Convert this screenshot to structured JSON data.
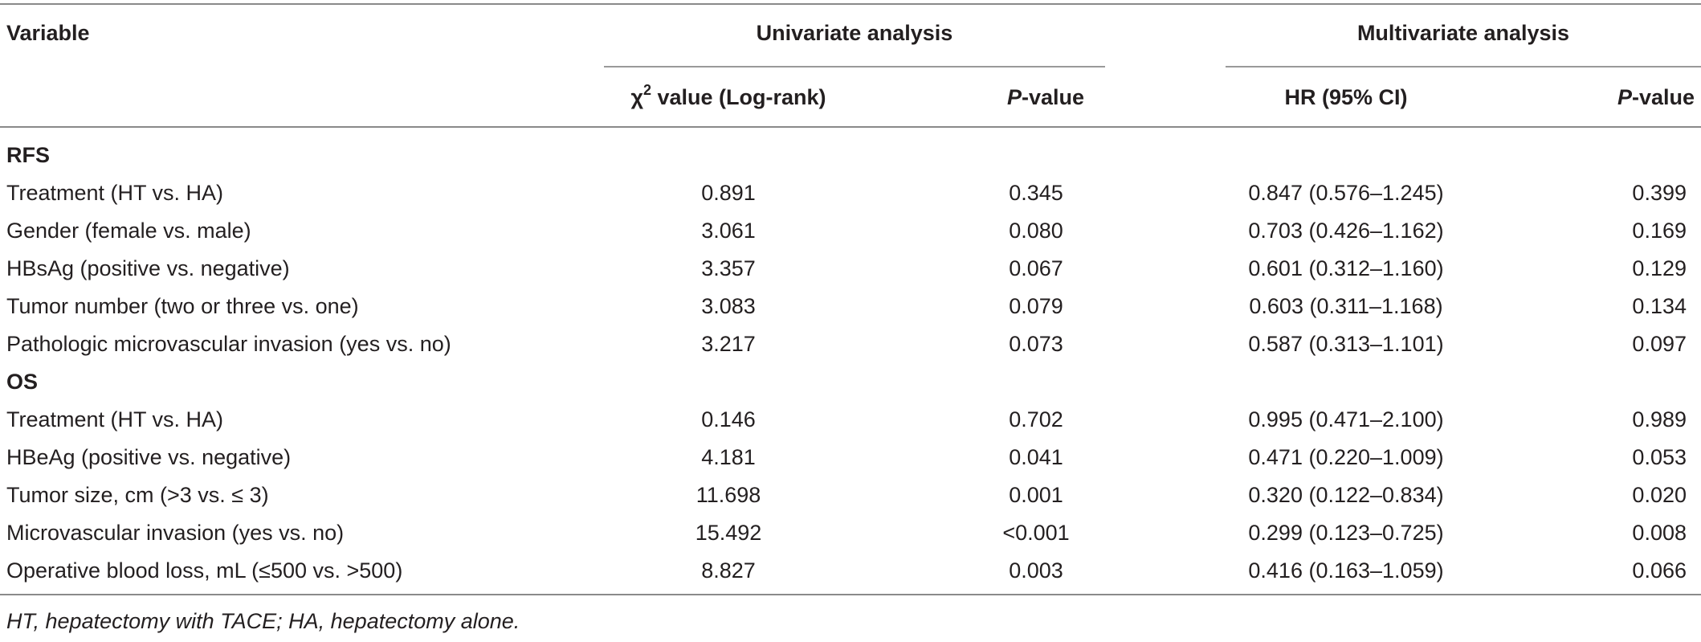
{
  "headers": {
    "variable": "Variable",
    "univariate": "Univariate analysis",
    "multivariate": "Multivariate analysis",
    "chi_prefix": "χ",
    "chi_sup": "2",
    "chi_suffix": " value (Log-rank)",
    "p_italic": "P",
    "p_suffix": "-value",
    "hr": "HR (95% CI)"
  },
  "sections": [
    {
      "title": "RFS",
      "rows": [
        {
          "variable": "Treatment (HT vs. HA)",
          "chi": "0.891",
          "p_uni": "0.345",
          "hr": "0.847 (0.576–1.245)",
          "p_multi": "0.399"
        },
        {
          "variable": "Gender (female vs. male)",
          "chi": "3.061",
          "p_uni": "0.080",
          "hr": "0.703 (0.426–1.162)",
          "p_multi": "0.169"
        },
        {
          "variable": "HBsAg (positive vs. negative)",
          "chi": "3.357",
          "p_uni": "0.067",
          "hr": "0.601 (0.312–1.160)",
          "p_multi": "0.129"
        },
        {
          "variable": "Tumor number (two or three vs. one)",
          "chi": "3.083",
          "p_uni": "0.079",
          "hr": "0.603 (0.311–1.168)",
          "p_multi": "0.134"
        },
        {
          "variable": "Pathologic microvascular invasion (yes vs. no)",
          "chi": "3.217",
          "p_uni": "0.073",
          "hr": "0.587 (0.313–1.101)",
          "p_multi": "0.097"
        }
      ]
    },
    {
      "title": "OS",
      "rows": [
        {
          "variable": "Treatment (HT vs. HA)",
          "chi": "0.146",
          "p_uni": "0.702",
          "hr": "0.995 (0.471–2.100)",
          "p_multi": "0.989"
        },
        {
          "variable": "HBeAg (positive vs. negative)",
          "chi": "4.181",
          "p_uni": "0.041",
          "hr": "0.471 (0.220–1.009)",
          "p_multi": "0.053"
        },
        {
          "variable": "Tumor size, cm (>3 vs. ≤ 3)",
          "chi": "11.698",
          "p_uni": "0.001",
          "hr": "0.320 (0.122–0.834)",
          "p_multi": "0.020"
        },
        {
          "variable": "Microvascular invasion (yes vs. no)",
          "chi": "15.492",
          "p_uni": "<0.001",
          "hr": "0.299 (0.123–0.725)",
          "p_multi": "0.008"
        },
        {
          "variable": "Operative blood loss, mL (≤500 vs. >500)",
          "chi": "8.827",
          "p_uni": "0.003",
          "hr": "0.416 (0.163–1.059)",
          "p_multi": "0.066"
        }
      ]
    }
  ],
  "footnote": "HT, hepatectomy with TACE; HA, hepatectomy alone."
}
